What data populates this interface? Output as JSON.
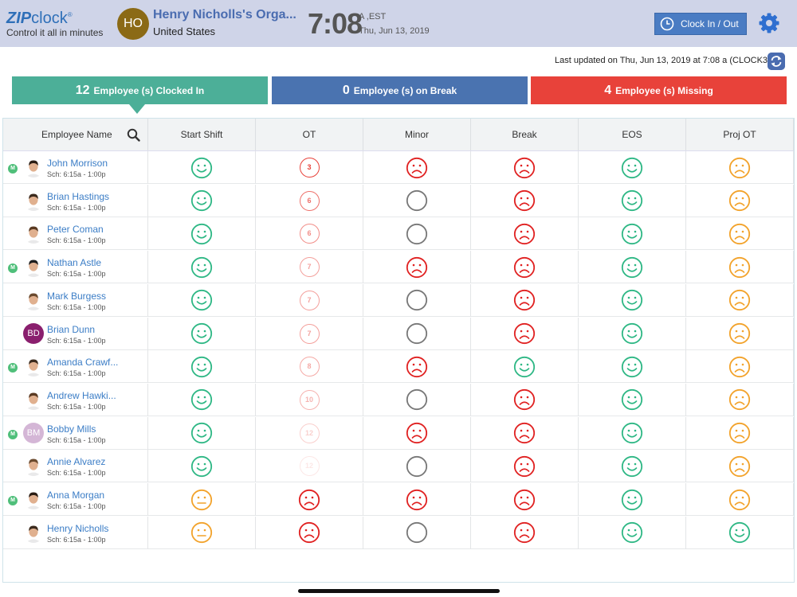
{
  "header": {
    "logo_zip": "ZIP",
    "logo_clock": "clock",
    "logo_reg": "®",
    "logo_tagline": "Control it all in minutes",
    "org_initials": "HO",
    "org_name": "Henry Nicholls's Orga...",
    "org_country": "United States",
    "time": "7:08",
    "time_zone": "A ,EST",
    "date": "Thu, Jun 13, 2019",
    "clock_in_label": "Clock In / Out",
    "icons": {
      "clock": "clock-icon",
      "settings": "gear-icon"
    },
    "colors": {
      "bar": "#cfd4e8",
      "button": "#4a7cc3",
      "org_avatar": "#8b6a16"
    }
  },
  "last_updated": "Last updated on Thu, Jun 13, 2019 at 7:08 a (CLOCK3)",
  "summary": {
    "clocked_in": {
      "count": "12",
      "label": "Employee (s) Clocked In",
      "color": "#4caf98"
    },
    "on_break": {
      "count": "0",
      "label": "Employee (s) on Break",
      "color": "#4a73b0"
    },
    "missing": {
      "count": "4",
      "label": "Employee (s) Missing",
      "color": "#e8423a"
    }
  },
  "table": {
    "columns": [
      "Employee Name",
      "Start Shift",
      "OT",
      "Minor",
      "Break",
      "EOS",
      "Proj OT"
    ],
    "status_colors": {
      "green": "#2db784",
      "red": "#e02020",
      "orange": "#f2a22a",
      "gray": "#777777"
    },
    "rows": [
      {
        "name": "John Morrison",
        "sch": "Sch: 6:15a - 1:00p",
        "m": true,
        "avatar": "photo",
        "start": "happy-green",
        "ot": "3",
        "ot_level": 1.0,
        "minor": "sad-red",
        "brk": "sad-red",
        "eos": "happy-green",
        "proj": "sad-orange"
      },
      {
        "name": "Brian Hastings",
        "sch": "Sch: 6:15a - 1:00p",
        "m": false,
        "avatar": "photo",
        "start": "happy-green",
        "ot": "6",
        "ot_level": 0.75,
        "minor": "empty",
        "brk": "sad-red",
        "eos": "happy-green",
        "proj": "sad-orange"
      },
      {
        "name": "Peter Coman",
        "sch": "Sch: 6:15a - 1:00p",
        "m": false,
        "avatar": "photo",
        "start": "happy-green",
        "ot": "6",
        "ot_level": 0.6,
        "minor": "empty",
        "brk": "sad-red",
        "eos": "happy-green",
        "proj": "sad-orange"
      },
      {
        "name": "Nathan Astle",
        "sch": "Sch: 6:15a - 1:00p",
        "m": true,
        "avatar": "photo",
        "start": "happy-green",
        "ot": "7",
        "ot_level": 0.5,
        "minor": "sad-red",
        "brk": "sad-red",
        "eos": "happy-green",
        "proj": "sad-orange"
      },
      {
        "name": "Mark Burgess",
        "sch": "Sch: 6:15a - 1:00p",
        "m": false,
        "avatar": "photo",
        "start": "happy-green",
        "ot": "7",
        "ot_level": 0.5,
        "minor": "empty",
        "brk": "sad-red",
        "eos": "happy-green",
        "proj": "sad-orange"
      },
      {
        "name": "Brian Dunn",
        "sch": "Sch: 6:15a - 1:00p",
        "m": false,
        "avatar": "BD",
        "avatar_color": "#8a1f6e",
        "start": "happy-green",
        "ot": "7",
        "ot_level": 0.5,
        "minor": "empty",
        "brk": "sad-red",
        "eos": "happy-green",
        "proj": "sad-orange"
      },
      {
        "name": "Amanda Crawf...",
        "sch": "Sch: 6:15a - 1:00p",
        "m": true,
        "avatar": "photo",
        "start": "happy-green",
        "ot": "8",
        "ot_level": 0.45,
        "minor": "sad-red",
        "brk": "happy-green",
        "eos": "happy-green",
        "proj": "sad-orange"
      },
      {
        "name": "Andrew Hawki...",
        "sch": "Sch: 6:15a - 1:00p",
        "m": false,
        "avatar": "photo",
        "start": "happy-green",
        "ot": "10",
        "ot_level": 0.4,
        "minor": "empty",
        "brk": "sad-red",
        "eos": "happy-green",
        "proj": "sad-orange"
      },
      {
        "name": "Bobby Mills",
        "sch": "Sch: 6:15a - 1:00p",
        "m": true,
        "avatar": "BM",
        "avatar_color": "#d4b6d6",
        "start": "happy-green",
        "ot": "12",
        "ot_level": 0.25,
        "minor": "sad-red",
        "brk": "sad-red",
        "eos": "happy-green",
        "proj": "sad-orange"
      },
      {
        "name": "Annie Alvarez",
        "sch": "Sch: 6:15a - 1:00p",
        "m": false,
        "avatar": "photo",
        "start": "happy-green",
        "ot": "12",
        "ot_level": 0.12,
        "minor": "empty",
        "brk": "sad-red",
        "eos": "happy-green",
        "proj": "sad-orange"
      },
      {
        "name": "Anna Morgan",
        "sch": "Sch: 6:15a - 1:00p",
        "m": true,
        "avatar": "photo",
        "start": "neutral-orange",
        "ot": "",
        "ot_face": "sad-red",
        "minor": "sad-red",
        "brk": "sad-red",
        "eos": "happy-green",
        "proj": "sad-orange"
      },
      {
        "name": "Henry Nicholls",
        "sch": "Sch: 6:15a - 1:00p",
        "m": false,
        "avatar": "photo",
        "start": "neutral-orange",
        "ot": "",
        "ot_face": "sad-red",
        "minor": "empty",
        "brk": "sad-red",
        "eos": "happy-green",
        "proj": "happy-green"
      }
    ],
    "m_badge": "M"
  }
}
